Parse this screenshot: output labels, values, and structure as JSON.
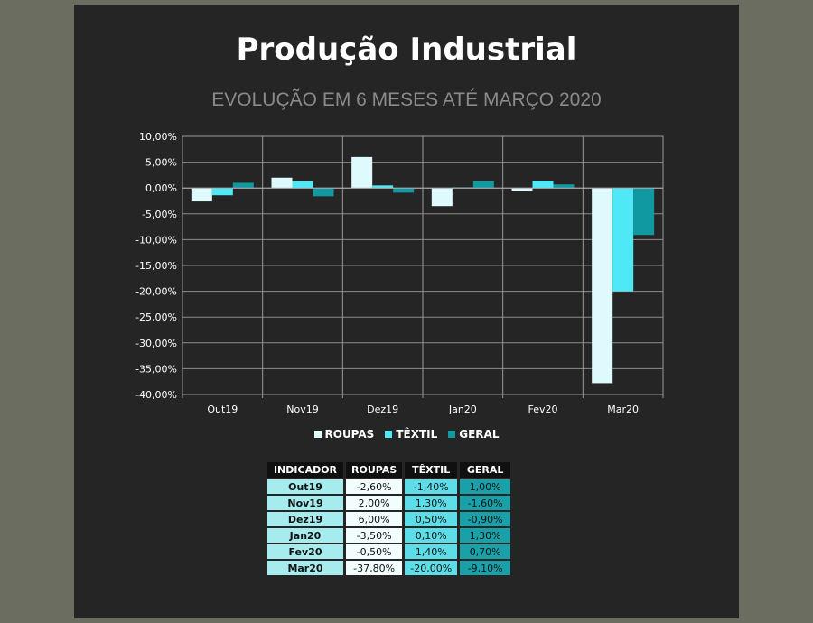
{
  "header": {
    "title": "Produção Industrial",
    "subtitle": "EVOLUÇÃO EM 6 MESES ATÉ MARÇO 2020"
  },
  "colors": {
    "background": "#6b6d60",
    "panel": "#252525",
    "roupas": "#dffafc",
    "textil": "#4ee8f7",
    "geral": "#1199a1"
  },
  "chart_data": {
    "type": "bar",
    "categories": [
      "Out19",
      "Nov19",
      "Dez19",
      "Jan20",
      "Fev20",
      "Mar20"
    ],
    "series": [
      {
        "name": "ROUPAS",
        "values": [
          -2.6,
          2.0,
          6.0,
          -3.5,
          -0.5,
          -37.8
        ],
        "color": "#dffafc"
      },
      {
        "name": "TÊXTIL",
        "values": [
          -1.4,
          1.3,
          0.5,
          0.1,
          1.4,
          -20.0
        ],
        "color": "#4ee8f7"
      },
      {
        "name": "GERAL",
        "values": [
          1.0,
          -1.6,
          -0.9,
          1.3,
          0.7,
          -9.1
        ],
        "color": "#1199a1"
      }
    ],
    "ylim": [
      -40,
      10
    ],
    "yticks": [
      "10,00%",
      "5,00%",
      "0,00%",
      "-5,00%",
      "-10,00%",
      "-15,00%",
      "-20,00%",
      "-25,00%",
      "-30,00%",
      "-35,00%",
      "-40,00%"
    ],
    "grid": true,
    "legend_position": "bottom"
  },
  "table": {
    "headers": [
      "INDICADOR",
      "ROUPAS",
      "TÊXTIL",
      "GERAL"
    ],
    "rows": [
      [
        "Out19",
        "-2,60%",
        "-1,40%",
        "1,00%"
      ],
      [
        "Nov19",
        "2,00%",
        "1,30%",
        "-1,60%"
      ],
      [
        "Dez19",
        "6,00%",
        "0,50%",
        "-0,90%"
      ],
      [
        "Jan20",
        "-3,50%",
        "0,10%",
        "1,30%"
      ],
      [
        "Fev20",
        "-0,50%",
        "1,40%",
        "0,70%"
      ],
      [
        "Mar20",
        "-37,80%",
        "-20,00%",
        "-9,10%"
      ]
    ]
  }
}
